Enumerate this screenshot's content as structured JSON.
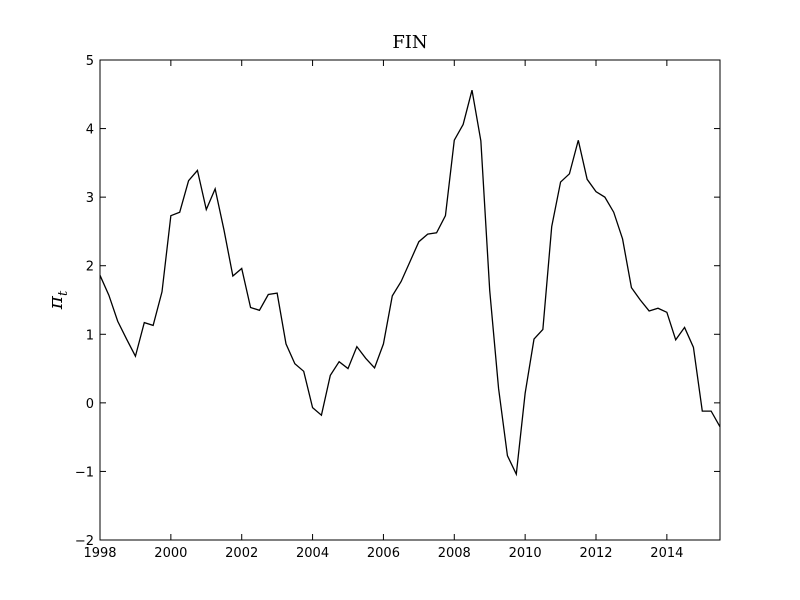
{
  "chart_data": {
    "type": "line",
    "title": "FIN",
    "xlabel": "",
    "ylabel": "π",
    "ylabel_subscript": "t",
    "xlim": [
      1998,
      2015.5
    ],
    "ylim": [
      -2,
      5
    ],
    "xticks": [
      1998,
      2000,
      2002,
      2004,
      2006,
      2008,
      2010,
      2012,
      2014
    ],
    "yticks": [
      -2,
      -1,
      0,
      1,
      2,
      3,
      4,
      5
    ],
    "ytick_labels": [
      "−2",
      "−1",
      "0",
      "1",
      "2",
      "3",
      "4",
      "5"
    ],
    "grid": false,
    "line_color": "#000000",
    "series": [
      {
        "x": [
          1998.0,
          1998.25,
          1998.5,
          1998.75,
          1999.0,
          1999.25,
          1999.5,
          1999.75,
          2000.0,
          2000.25,
          2000.5,
          2000.75,
          2001.0,
          2001.25,
          2001.5,
          2001.75,
          2002.0,
          2002.25,
          2002.5,
          2002.75,
          2003.0,
          2003.25,
          2003.5,
          2003.75,
          2004.0,
          2004.25,
          2004.5,
          2004.75,
          2005.0,
          2005.25,
          2005.5,
          2005.75,
          2006.0,
          2006.25,
          2006.5,
          2006.75,
          2007.0,
          2007.25,
          2007.5,
          2007.75,
          2008.0,
          2008.25,
          2008.5,
          2008.75,
          2009.0,
          2009.25,
          2009.5,
          2009.75,
          2010.0,
          2010.25,
          2010.5,
          2010.75,
          2011.0,
          2011.25,
          2011.5,
          2011.75,
          2012.0,
          2012.25,
          2012.5,
          2012.75,
          2013.0,
          2013.25,
          2013.5,
          2013.75,
          2014.0,
          2014.25,
          2014.5,
          2014.75,
          2015.0,
          2015.25,
          2015.5
        ],
        "values": [
          1.86,
          1.57,
          1.19,
          0.93,
          0.68,
          1.17,
          1.13,
          1.62,
          2.73,
          2.78,
          3.24,
          3.39,
          2.82,
          3.12,
          2.52,
          1.85,
          1.96,
          1.39,
          1.35,
          1.58,
          1.6,
          0.86,
          0.57,
          0.46,
          -0.07,
          -0.18,
          0.4,
          0.6,
          0.5,
          0.82,
          0.65,
          0.51,
          0.86,
          1.56,
          1.77,
          2.06,
          2.35,
          2.46,
          2.48,
          2.73,
          3.83,
          4.06,
          4.56,
          3.82,
          1.64,
          0.21,
          -0.77,
          -1.04,
          0.14,
          0.93,
          1.07,
          2.57,
          3.22,
          3.34,
          3.83,
          3.26,
          3.08,
          3.0,
          2.78,
          2.39,
          1.68,
          1.5,
          1.34,
          1.38,
          1.32,
          0.92,
          1.1,
          0.81,
          -0.12,
          -0.12,
          -0.35
        ]
      }
    ]
  }
}
